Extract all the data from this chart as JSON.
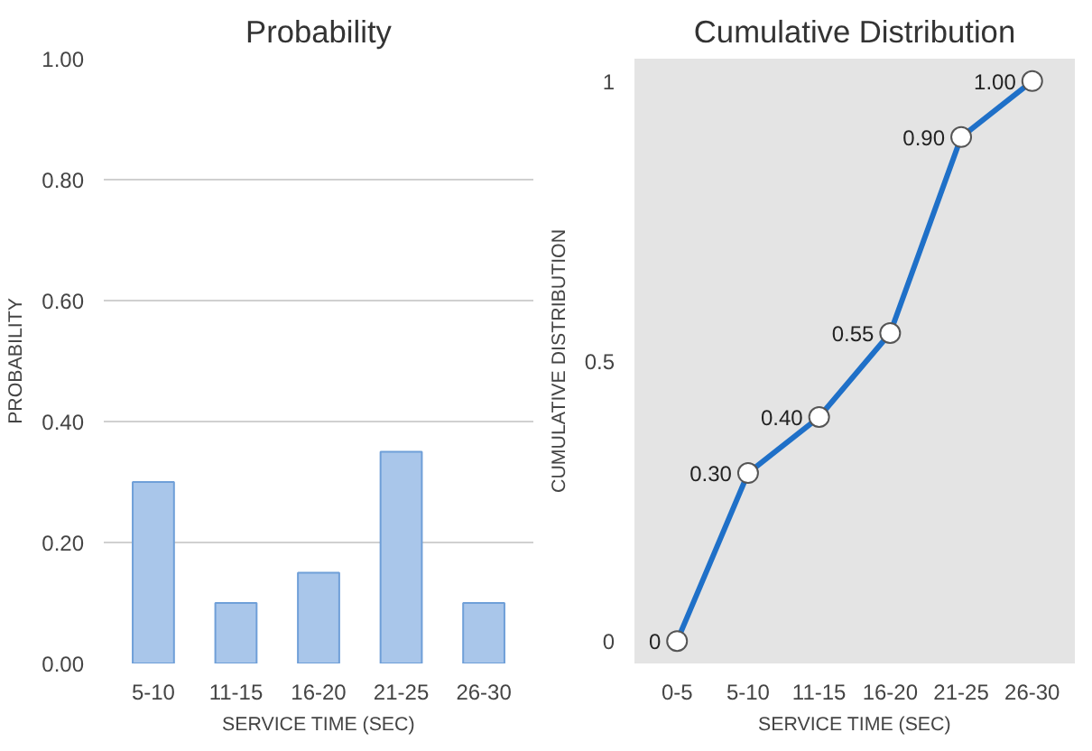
{
  "chart_data": [
    {
      "type": "bar",
      "title": "Probability",
      "xlabel": "SERVICE TIME (SEC)",
      "ylabel": "PROBABILITY",
      "categories": [
        "5-10",
        "11-15",
        "16-20",
        "21-25",
        "26-30"
      ],
      "values": [
        0.3,
        0.1,
        0.15,
        0.35,
        0.1
      ],
      "color": "#a9c6ea",
      "ylim": [
        0,
        1
      ],
      "yticks": [
        {
          "value": 0,
          "label": "0.00"
        },
        {
          "value": 0.2,
          "label": "0.20"
        },
        {
          "value": 0.4,
          "label": "0.40"
        },
        {
          "value": 0.6,
          "label": "0.60"
        },
        {
          "value": 0.8,
          "label": "0.80"
        },
        {
          "value": 1,
          "label": "1.00"
        }
      ],
      "grid": "y"
    },
    {
      "type": "line",
      "title": "Cumulative Distribution",
      "xlabel": "SERVICE TIME (SEC)",
      "ylabel": "CUMULATIVE DISTRIBUTION",
      "categories": [
        "0-5",
        "5-10",
        "11-15",
        "16-20",
        "21-25",
        "26-30"
      ],
      "values": [
        0,
        0.3,
        0.4,
        0.55,
        0.9,
        1.0
      ],
      "value_labels": [
        "0",
        "0.30",
        "0.40",
        "0.55",
        "0.90",
        "1.00"
      ],
      "color": "#1f70c8",
      "marker": "circle",
      "line_style": "solid",
      "ylim": [
        -0.04,
        1.04
      ],
      "yticks": [
        0,
        0.5,
        1
      ],
      "grid": false
    }
  ]
}
